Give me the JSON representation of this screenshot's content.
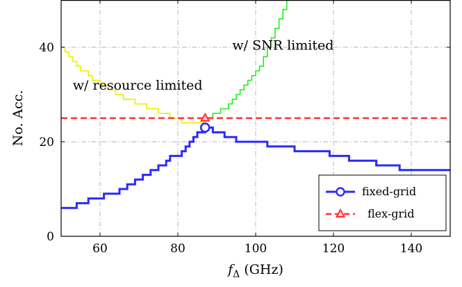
{
  "chart_data": {
    "type": "line",
    "xlabel_main": "f",
    "xlabel_sub": "Δ",
    "xlabel_unit": " (GHz)",
    "ylabel": "No. Acc.",
    "xlim": [
      50,
      150
    ],
    "ylim": [
      0,
      50
    ],
    "xticks": [
      60,
      80,
      100,
      120,
      140
    ],
    "yticks": [
      0,
      20,
      40
    ],
    "grid": true,
    "legend_position": "bottom-right",
    "annotations": [
      {
        "text": "w/ SNR limited",
        "x": 94,
        "y": 39.5
      },
      {
        "text": "w/ resource limited",
        "x": 53,
        "y": 31
      }
    ],
    "series": [
      {
        "name": "fixed-grid",
        "color": "#2a2aff",
        "style": "step",
        "marker": "circle",
        "marker_point": [
          87,
          23
        ],
        "x": [
          50,
          54,
          57,
          61,
          65,
          67,
          69,
          71,
          73,
          75,
          77,
          78,
          80,
          81,
          82,
          83,
          84,
          85,
          86,
          87,
          89,
          92,
          95,
          103,
          110,
          119,
          124,
          131,
          137,
          143,
          150
        ],
        "y": [
          6,
          7,
          8,
          9,
          10,
          11,
          12,
          13,
          14,
          15,
          16,
          17,
          17,
          18,
          19,
          20,
          21,
          22,
          22,
          23,
          22,
          21,
          20,
          19,
          18,
          17,
          16,
          15,
          14,
          14,
          14
        ]
      },
      {
        "name": "flex-grid",
        "color": "#ff3030",
        "style": "dashed",
        "marker": "triangle",
        "marker_point": [
          87,
          25
        ],
        "x": [
          50,
          150
        ],
        "y": [
          25,
          25
        ]
      },
      {
        "name": "",
        "color": "#eeee00",
        "style": "step",
        "x": [
          50,
          51,
          52,
          53,
          54,
          55,
          57,
          58,
          60,
          62,
          64,
          66,
          69,
          72,
          75,
          78,
          81,
          84,
          87
        ],
        "y": [
          40,
          39,
          38,
          37,
          36,
          35,
          34,
          33,
          32,
          31,
          30,
          29,
          28,
          27,
          26,
          25,
          24,
          24,
          24
        ]
      },
      {
        "name": "",
        "color": "#22ee22",
        "style": "step",
        "x": [
          87,
          89,
          91,
          93,
          94,
          95,
          96,
          97,
          98,
          99,
          100,
          101,
          102,
          103,
          104,
          105,
          106,
          107,
          108
        ],
        "y": [
          25,
          26,
          27,
          28,
          29,
          30,
          31,
          32,
          33,
          34,
          35,
          36,
          38,
          40,
          42,
          44,
          46,
          48,
          50
        ]
      }
    ]
  }
}
